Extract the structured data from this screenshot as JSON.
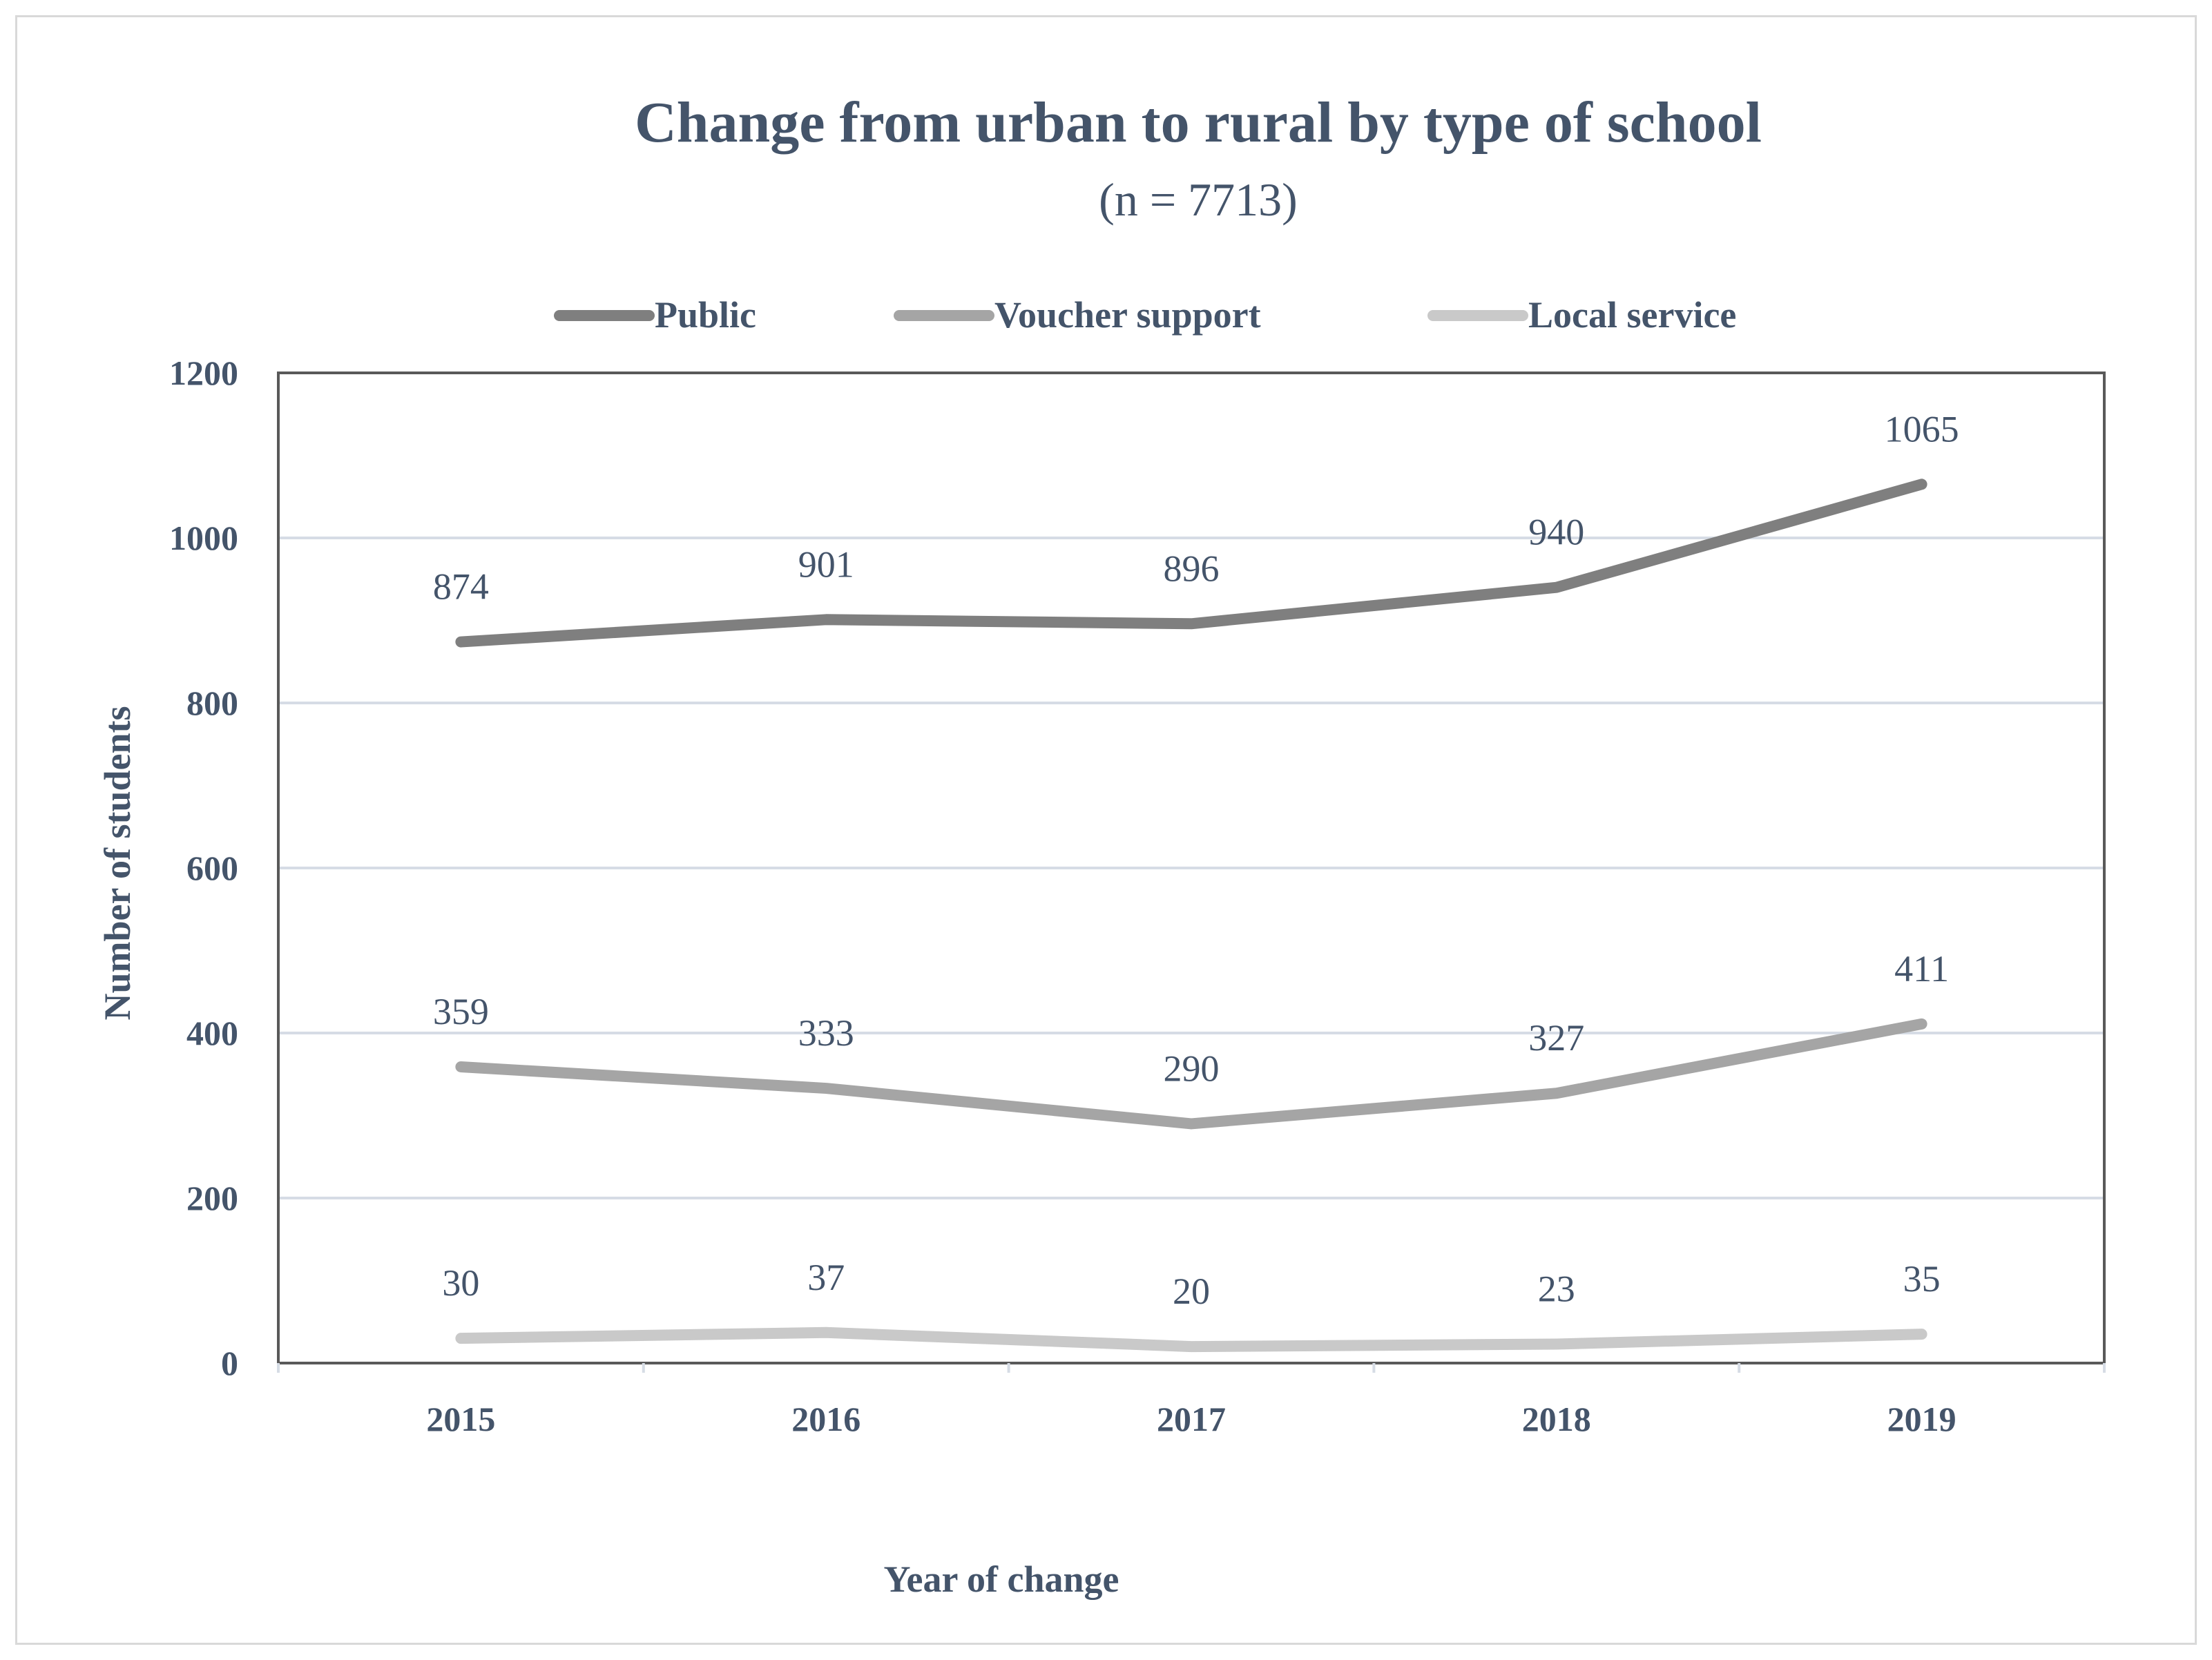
{
  "chart_data": {
    "type": "line",
    "title": "Change from urban to rural by type of school",
    "subtitle": "(n = 7713)",
    "xlabel": "Year of change",
    "ylabel": "Number of students",
    "categories": [
      "2015",
      "2016",
      "2017",
      "2018",
      "2019"
    ],
    "ylim": [
      0,
      1200
    ],
    "yticks": [
      0,
      200,
      400,
      600,
      800,
      1000,
      1200
    ],
    "grid": true,
    "legend_position": "top",
    "series": [
      {
        "name": "Public",
        "values": [
          874,
          901,
          896,
          940,
          1065
        ],
        "color": "#7f7f7f"
      },
      {
        "name": "Voucher support",
        "values": [
          359,
          333,
          290,
          327,
          411
        ],
        "color": "#a5a5a5"
      },
      {
        "name": "Local service",
        "values": [
          30,
          37,
          20,
          23,
          35
        ],
        "color": "#c9c9c9"
      }
    ]
  },
  "colors": {
    "text": "#44546a",
    "gridline": "#d6dce5",
    "axis": "#595959",
    "border": "#d9d9d9"
  }
}
